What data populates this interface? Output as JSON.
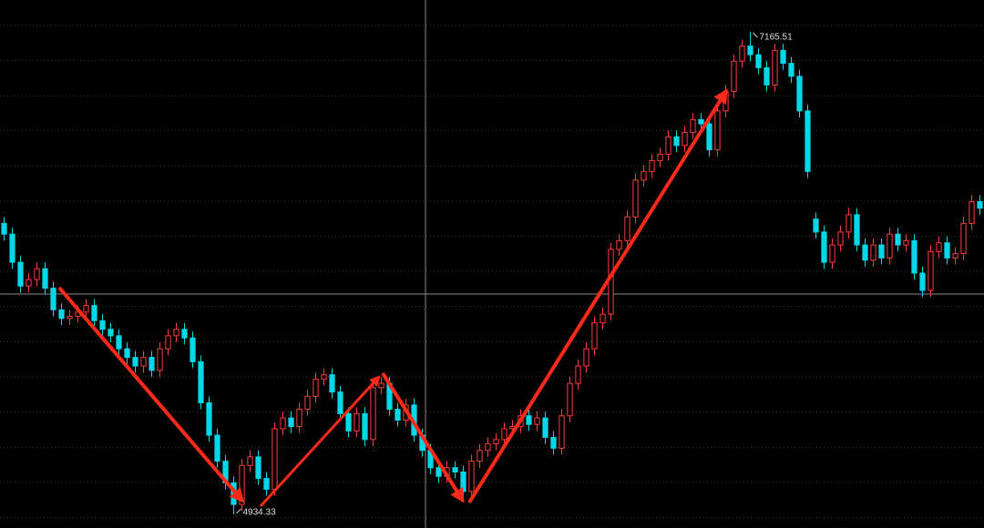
{
  "chart_data": {
    "type": "candlestick",
    "max_label": "7165.51",
    "min_label": "4934.33",
    "up_color": "#ff3b3b",
    "down_color": "#00d8e8",
    "ylim": [
      4871,
      7313
    ],
    "open": [
      6280,
      6230,
      6100,
      5990,
      6020,
      6070,
      5980,
      5880,
      5840,
      5850,
      5870,
      5900,
      5830,
      5790,
      5760,
      5700,
      5660,
      5620,
      5660,
      5600,
      5700,
      5760,
      5790,
      5750,
      5640,
      5450,
      5300,
      5180,
      5080,
      4980,
      5160,
      5200,
      5100,
      5050,
      5330,
      5380,
      5340,
      5420,
      5480,
      5560,
      5580,
      5500,
      5400,
      5320,
      5400,
      5280,
      5520,
      5540,
      5420,
      5370,
      5440,
      5300,
      5230,
      5150,
      5110,
      5150,
      5130,
      5040,
      5180,
      5230,
      5260,
      5280,
      5330,
      5340,
      5390,
      5350,
      5380,
      5290,
      5240,
      5390,
      5540,
      5620,
      5700,
      5820,
      5860,
      6160,
      6200,
      6310,
      6480,
      6520,
      6570,
      6600,
      6680,
      6640,
      6700,
      6760,
      6740,
      6620,
      6800,
      6890,
      7030,
      7100,
      7060,
      7000,
      6920,
      7080,
      7020,
      6960,
      6800,
      6300,
      6240,
      6100,
      6180,
      6240,
      6320,
      6180,
      6110,
      6180,
      6120,
      6230,
      6180,
      6200,
      6050,
      5970,
      6150,
      6190,
      6120,
      6140,
      6280,
      6380
    ],
    "high": [
      6310,
      6260,
      6130,
      6050,
      6100,
      6100,
      6010,
      5910,
      5880,
      5900,
      5930,
      5930,
      5860,
      5820,
      5790,
      5730,
      5690,
      5690,
      5690,
      5730,
      5790,
      5820,
      5820,
      5780,
      5670,
      5480,
      5330,
      5210,
      5110,
      5190,
      5230,
      5230,
      5130,
      5360,
      5410,
      5410,
      5450,
      5510,
      5590,
      5610,
      5610,
      5530,
      5430,
      5430,
      5430,
      5550,
      5570,
      5570,
      5450,
      5470,
      5470,
      5330,
      5260,
      5180,
      5180,
      5180,
      5160,
      5210,
      5260,
      5290,
      5310,
      5360,
      5370,
      5420,
      5420,
      5410,
      5410,
      5320,
      5420,
      5570,
      5650,
      5730,
      5850,
      5890,
      6190,
      6230,
      6340,
      6510,
      6550,
      6600,
      6630,
      6710,
      6710,
      6730,
      6790,
      6790,
      6770,
      6830,
      6920,
      7060,
      7130,
      7165.51,
      7090,
      7030,
      7110,
      7110,
      7050,
      6990,
      6830,
      6330,
      6270,
      6210,
      6270,
      6350,
      6350,
      6210,
      6210,
      6210,
      6260,
      6260,
      6230,
      6230,
      6080,
      6180,
      6220,
      6220,
      6170,
      6310,
      6410,
      6410
    ],
    "low": [
      6200,
      6070,
      5960,
      5960,
      5990,
      5950,
      5850,
      5810,
      5810,
      5820,
      5840,
      5800,
      5760,
      5730,
      5670,
      5630,
      5590,
      5590,
      5570,
      5570,
      5670,
      5730,
      5720,
      5610,
      5420,
      5270,
      5150,
      5050,
      4934.33,
      4950,
      5130,
      5070,
      5020,
      5020,
      5300,
      5310,
      5310,
      5390,
      5450,
      5530,
      5470,
      5370,
      5290,
      5290,
      5250,
      5250,
      5490,
      5390,
      5340,
      5340,
      5270,
      5200,
      5120,
      5080,
      5080,
      5100,
      5010,
      5010,
      5150,
      5200,
      5230,
      5250,
      5300,
      5310,
      5320,
      5320,
      5260,
      5210,
      5210,
      5360,
      5510,
      5590,
      5670,
      5790,
      5830,
      6130,
      6170,
      6280,
      6450,
      6490,
      6540,
      6570,
      6610,
      6610,
      6670,
      6710,
      6590,
      6590,
      6770,
      6860,
      7000,
      7030,
      6970,
      6890,
      6890,
      6990,
      6930,
      6770,
      6490,
      6210,
      6070,
      6070,
      6150,
      6210,
      6150,
      6080,
      6080,
      6090,
      6090,
      6150,
      6150,
      6020,
      5940,
      5940,
      6120,
      6090,
      6090,
      6110,
      6250,
      6320
    ],
    "close": [
      6230,
      6100,
      5990,
      6020,
      6070,
      5980,
      5880,
      5840,
      5850,
      5870,
      5900,
      5830,
      5790,
      5760,
      5700,
      5660,
      5620,
      5660,
      5600,
      5700,
      5760,
      5790,
      5750,
      5640,
      5450,
      5300,
      5180,
      5080,
      4980,
      5160,
      5200,
      5100,
      5050,
      5330,
      5380,
      5340,
      5420,
      5480,
      5560,
      5580,
      5500,
      5400,
      5320,
      5400,
      5280,
      5520,
      5540,
      5420,
      5370,
      5440,
      5300,
      5230,
      5150,
      5110,
      5150,
      5130,
      5040,
      5180,
      5230,
      5260,
      5280,
      5330,
      5340,
      5390,
      5350,
      5380,
      5290,
      5240,
      5390,
      5540,
      5620,
      5700,
      5820,
      5860,
      6160,
      6200,
      6310,
      6480,
      6520,
      6570,
      6600,
      6680,
      6640,
      6700,
      6760,
      6740,
      6620,
      6800,
      6890,
      7030,
      7100,
      7060,
      7000,
      6920,
      7080,
      7020,
      6960,
      6800,
      6520,
      6240,
      6100,
      6180,
      6240,
      6320,
      6180,
      6110,
      6180,
      6120,
      6230,
      6180,
      6200,
      6050,
      5970,
      6150,
      6190,
      6120,
      6140,
      6280,
      6380,
      6350
    ]
  }
}
